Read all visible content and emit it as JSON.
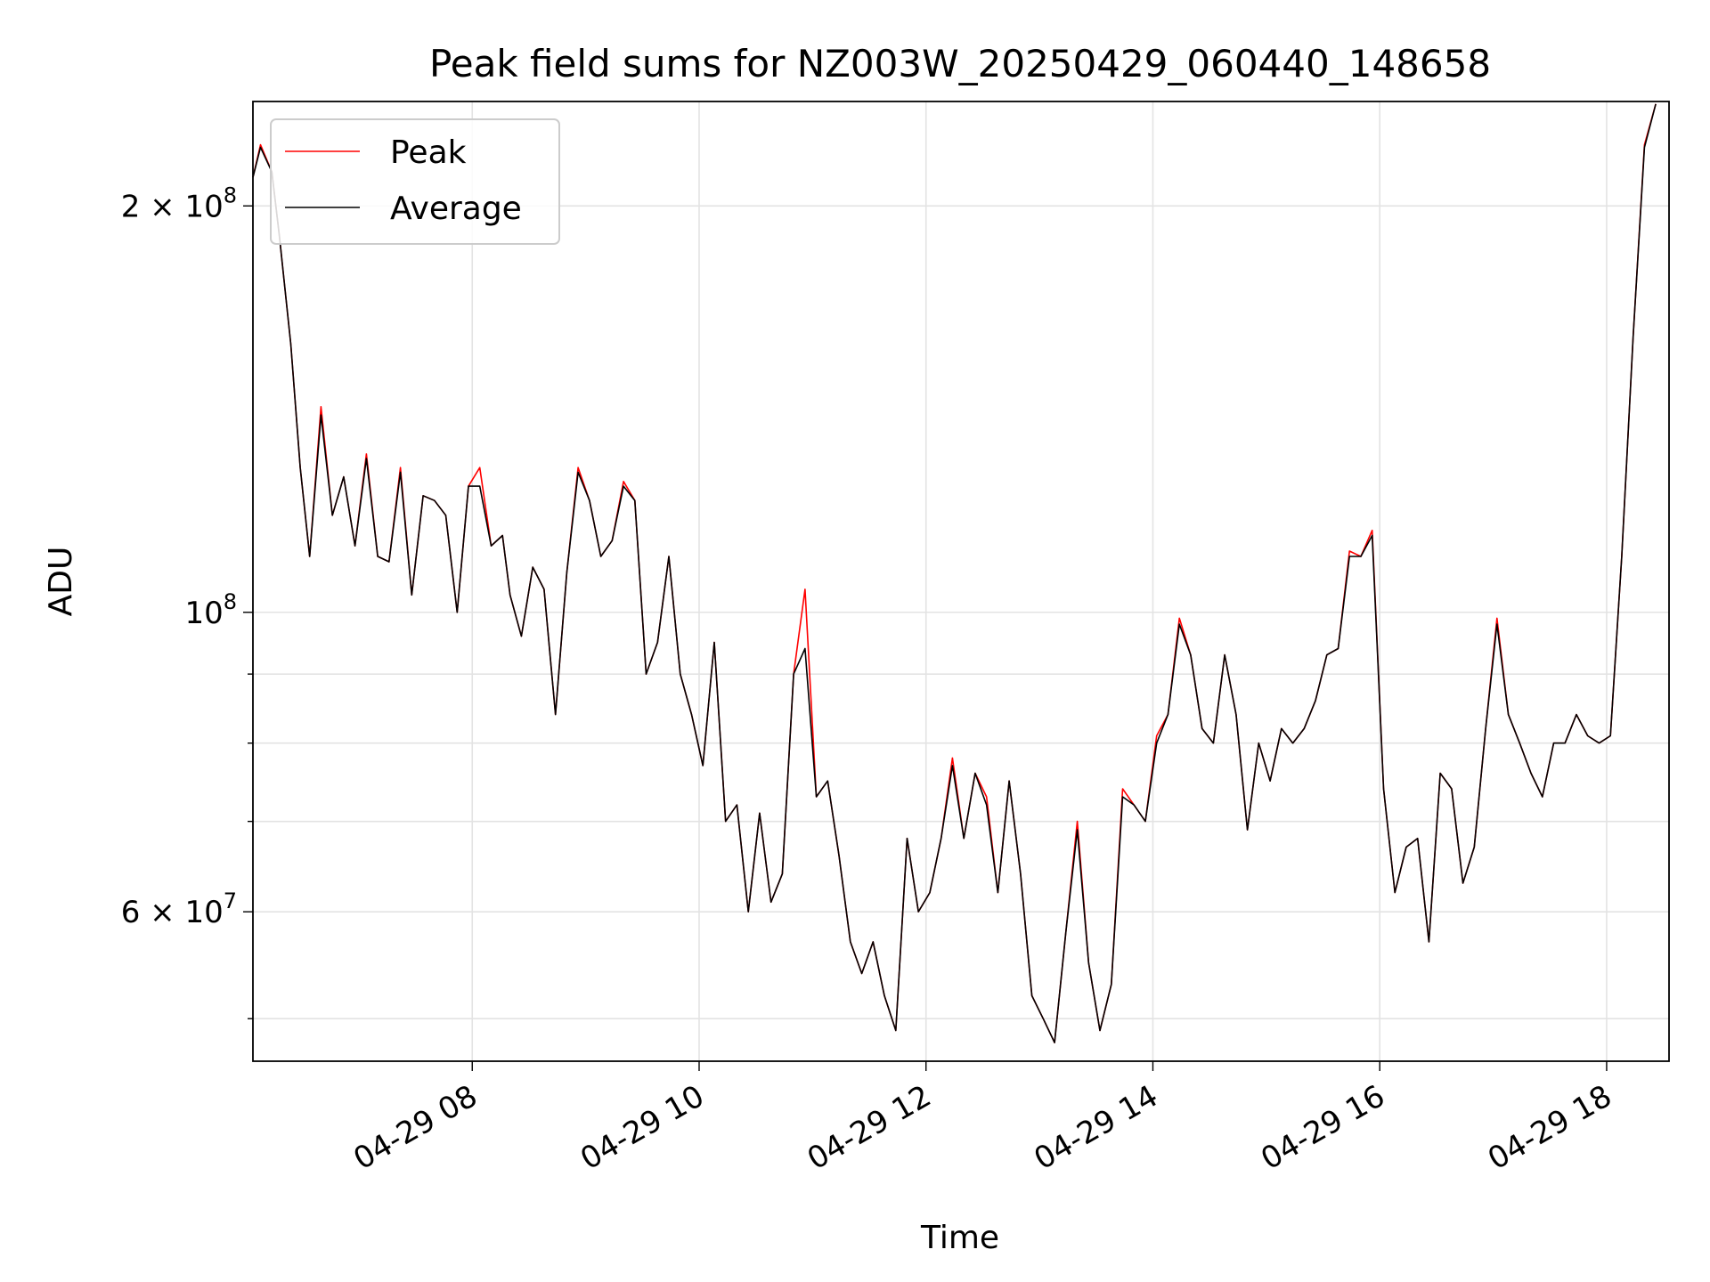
{
  "chart_data": {
    "type": "line",
    "title": "Peak field sums for NZ003W_20250429_060440_148658",
    "xlabel": "Time",
    "ylabel": "ADU",
    "yscale": "log",
    "grid": true,
    "legend_position": "upper-left",
    "xlim": [
      "2025-04-29 06:04",
      "2025-04-29 18:33"
    ],
    "ylim": [
      46500000,
      239000000
    ],
    "x_ticks": [
      {
        "value": "2025-04-29 08:00",
        "label": "04-29 08"
      },
      {
        "value": "2025-04-29 10:00",
        "label": "04-29 10"
      },
      {
        "value": "2025-04-29 12:00",
        "label": "04-29 12"
      },
      {
        "value": "2025-04-29 14:00",
        "label": "04-29 14"
      },
      {
        "value": "2025-04-29 16:00",
        "label": "04-29 16"
      },
      {
        "value": "2025-04-29 18:00",
        "label": "04-29 18"
      }
    ],
    "y_major_ticks": [
      {
        "value": 60000000,
        "base": "6 × 10",
        "exp": "7"
      },
      {
        "value": 100000000,
        "base": "10",
        "exp": "8"
      },
      {
        "value": 200000000,
        "base": "2 × 10",
        "exp": "8"
      }
    ],
    "y_minor_ticks": [
      50000000,
      70000000,
      80000000,
      90000000
    ],
    "series": [
      {
        "name": "Peak",
        "color": "#ff0000"
      },
      {
        "name": "Average",
        "color": "#000000"
      }
    ],
    "x": [
      "2025-04-29 06:04",
      "2025-04-29 06:08",
      "2025-04-29 06:14",
      "2025-04-29 06:18",
      "2025-04-29 06:24",
      "2025-04-29 06:29",
      "2025-04-29 06:34",
      "2025-04-29 06:40",
      "2025-04-29 06:46",
      "2025-04-29 06:52",
      "2025-04-29 06:58",
      "2025-04-29 07:04",
      "2025-04-29 07:10",
      "2025-04-29 07:16",
      "2025-04-29 07:22",
      "2025-04-29 07:28",
      "2025-04-29 07:34",
      "2025-04-29 07:40",
      "2025-04-29 07:46",
      "2025-04-29 07:52",
      "2025-04-29 07:58",
      "2025-04-29 08:04",
      "2025-04-29 08:10",
      "2025-04-29 08:16",
      "2025-04-29 08:20",
      "2025-04-29 08:26",
      "2025-04-29 08:32",
      "2025-04-29 08:38",
      "2025-04-29 08:44",
      "2025-04-29 08:50",
      "2025-04-29 08:56",
      "2025-04-29 09:02",
      "2025-04-29 09:08",
      "2025-04-29 09:14",
      "2025-04-29 09:20",
      "2025-04-29 09:26",
      "2025-04-29 09:32",
      "2025-04-29 09:38",
      "2025-04-29 09:44",
      "2025-04-29 09:50",
      "2025-04-29 09:56",
      "2025-04-29 10:02",
      "2025-04-29 10:08",
      "2025-04-29 10:14",
      "2025-04-29 10:20",
      "2025-04-29 10:26",
      "2025-04-29 10:32",
      "2025-04-29 10:38",
      "2025-04-29 10:44",
      "2025-04-29 10:50",
      "2025-04-29 10:56",
      "2025-04-29 11:02",
      "2025-04-29 11:08",
      "2025-04-29 11:14",
      "2025-04-29 11:20",
      "2025-04-29 11:26",
      "2025-04-29 11:32",
      "2025-04-29 11:38",
      "2025-04-29 11:44",
      "2025-04-29 11:50",
      "2025-04-29 11:56",
      "2025-04-29 12:02",
      "2025-04-29 12:08",
      "2025-04-29 12:14",
      "2025-04-29 12:20",
      "2025-04-29 12:26",
      "2025-04-29 12:32",
      "2025-04-29 12:38",
      "2025-04-29 12:44",
      "2025-04-29 12:50",
      "2025-04-29 12:56",
      "2025-04-29 13:02",
      "2025-04-29 13:08",
      "2025-04-29 13:14",
      "2025-04-29 13:20",
      "2025-04-29 13:26",
      "2025-04-29 13:32",
      "2025-04-29 13:38",
      "2025-04-29 13:44",
      "2025-04-29 13:50",
      "2025-04-29 13:56",
      "2025-04-29 14:02",
      "2025-04-29 14:08",
      "2025-04-29 14:14",
      "2025-04-29 14:20",
      "2025-04-29 14:26",
      "2025-04-29 14:32",
      "2025-04-29 14:38",
      "2025-04-29 14:44",
      "2025-04-29 14:50",
      "2025-04-29 14:56",
      "2025-04-29 15:02",
      "2025-04-29 15:08",
      "2025-04-29 15:14",
      "2025-04-29 15:20",
      "2025-04-29 15:26",
      "2025-04-29 15:32",
      "2025-04-29 15:38",
      "2025-04-29 15:44",
      "2025-04-29 15:50",
      "2025-04-29 15:56",
      "2025-04-29 16:02",
      "2025-04-29 16:08",
      "2025-04-29 16:14",
      "2025-04-29 16:20",
      "2025-04-29 16:26",
      "2025-04-29 16:32",
      "2025-04-29 16:38",
      "2025-04-29 16:44",
      "2025-04-29 16:50",
      "2025-04-29 16:56",
      "2025-04-29 17:02",
      "2025-04-29 17:08",
      "2025-04-29 17:14",
      "2025-04-29 17:20",
      "2025-04-29 17:26",
      "2025-04-29 17:32",
      "2025-04-29 17:38",
      "2025-04-29 17:44",
      "2025-04-29 17:50",
      "2025-04-29 17:56",
      "2025-04-29 18:02",
      "2025-04-29 18:08",
      "2025-04-29 18:14",
      "2025-04-29 18:20",
      "2025-04-29 18:26",
      "2025-04-29 18:30"
    ],
    "peak": [
      210,
      222,
      212,
      190,
      158,
      128,
      110,
      142,
      118,
      126,
      112,
      131,
      110,
      109,
      128,
      103,
      122,
      121,
      118,
      100,
      124,
      128,
      112,
      114,
      103,
      96,
      108,
      104,
      84,
      107,
      128,
      121,
      110,
      113,
      125,
      121,
      90,
      95,
      110,
      90,
      84,
      77,
      95,
      70,
      72,
      60,
      71,
      61,
      64,
      90,
      104,
      73,
      75,
      66,
      57,
      54,
      57,
      52,
      49,
      68,
      60,
      62,
      68,
      78,
      68,
      76,
      73,
      62,
      75,
      64,
      52,
      50,
      48,
      58,
      70,
      55,
      49,
      53,
      74,
      72,
      70,
      81,
      84,
      99,
      93,
      82,
      80,
      93,
      84,
      69,
      80,
      75,
      82,
      80,
      82,
      86,
      93,
      94,
      111,
      110,
      115,
      74,
      62,
      67,
      68,
      57,
      76,
      74,
      63,
      67,
      82,
      99,
      84,
      80,
      76,
      73,
      80,
      80,
      84,
      81,
      80,
      81,
      110,
      160,
      222,
      238
    ],
    "average": [
      210,
      221,
      212,
      190,
      158,
      128,
      110,
      140,
      118,
      126,
      112,
      130,
      110,
      109,
      127,
      103,
      122,
      121,
      118,
      100,
      124,
      124,
      112,
      114,
      103,
      96,
      108,
      104,
      84,
      107,
      127,
      121,
      110,
      113,
      124,
      121,
      90,
      95,
      110,
      90,
      84,
      77,
      95,
      70,
      72,
      60,
      71,
      61,
      64,
      90,
      94,
      73,
      75,
      66,
      57,
      54,
      57,
      52,
      49,
      68,
      60,
      62,
      68,
      77,
      68,
      76,
      72,
      62,
      75,
      64,
      52,
      50,
      48,
      58,
      69,
      55,
      49,
      53,
      73,
      72,
      70,
      80,
      84,
      98,
      93,
      82,
      80,
      93,
      84,
      69,
      80,
      75,
      82,
      80,
      82,
      86,
      93,
      94,
      110,
      110,
      114,
      74,
      62,
      67,
      68,
      57,
      76,
      74,
      63,
      67,
      82,
      98,
      84,
      80,
      76,
      73,
      80,
      80,
      84,
      81,
      80,
      81,
      110,
      160,
      221,
      238
    ],
    "value_unit": 1000000
  }
}
